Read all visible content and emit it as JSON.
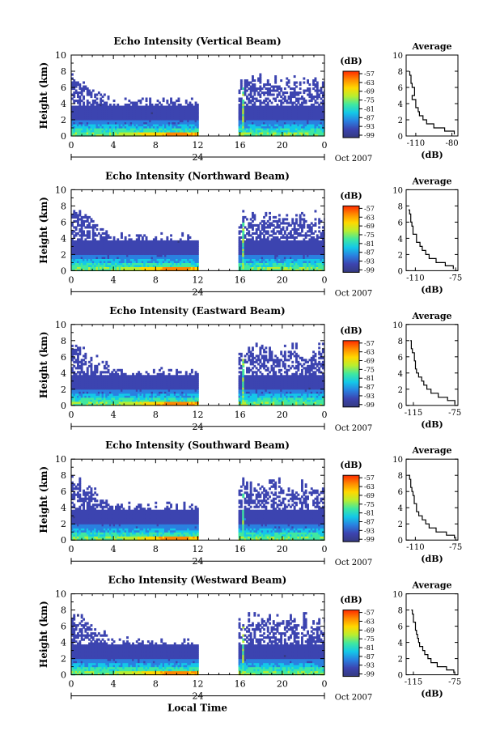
{
  "chart_data": [
    {
      "type": "heatmap",
      "title": "Echo Intensity (Vertical Beam)",
      "ylabel": "Height (km)",
      "y_ticks": [
        "0",
        "2",
        "4",
        "6",
        "8",
        "10"
      ],
      "x_ticks": [
        "0",
        "4",
        "8",
        "12",
        "16",
        "20",
        "0"
      ],
      "ylim": [
        0,
        10
      ],
      "xlim": [
        0,
        24
      ],
      "date_mark": "24",
      "month_year": "Oct 2007",
      "data_gap_hours": [
        12.2,
        15.8
      ],
      "colorbar": {
        "unit": "(dB)",
        "labels": [
          "-57",
          "-63",
          "-69",
          "-75",
          "-81",
          "-87",
          "-93",
          "-99"
        ]
      },
      "average_profile": {
        "title": "Average",
        "xlabel": "(dB)",
        "x_ticks": [
          "-110",
          "-80"
        ],
        "xlim": [
          -118,
          -75
        ],
        "y_ticks": [
          "0",
          "2",
          "4",
          "6",
          "8",
          "10"
        ],
        "ylim": [
          0,
          10
        ],
        "height_km": [
          0.2,
          0.6,
          1.0,
          1.5,
          2.0,
          2.5,
          3.0,
          3.5,
          4.0,
          4.5,
          5.0,
          5.5,
          6.0,
          6.5,
          7.0,
          7.5,
          8.0
        ],
        "echo_db": [
          -78,
          -86,
          -95,
          -101,
          -104,
          -107,
          -108,
          -110,
          -110,
          -113,
          -111,
          -111,
          -113,
          -114,
          -114,
          -115,
          -115
        ]
      }
    },
    {
      "type": "heatmap",
      "title": "Echo Intensity (Northward Beam)",
      "ylabel": "Height (km)",
      "y_ticks": [
        "0",
        "2",
        "4",
        "6",
        "8",
        "10"
      ],
      "x_ticks": [
        "0",
        "4",
        "8",
        "12",
        "16",
        "20",
        "0"
      ],
      "ylim": [
        0,
        10
      ],
      "xlim": [
        0,
        24
      ],
      "date_mark": "24",
      "month_year": "Oct 2007",
      "data_gap_hours": [
        12.2,
        15.8
      ],
      "colorbar": {
        "unit": "(dB)",
        "labels": [
          "-57",
          "-63",
          "-69",
          "-75",
          "-81",
          "-87",
          "-93",
          "-99"
        ]
      },
      "average_profile": {
        "title": "Average",
        "xlabel": "(dB)",
        "x_ticks": [
          "-110",
          "-75"
        ],
        "xlim": [
          -118,
          -73
        ],
        "y_ticks": [
          "0",
          "2",
          "4",
          "6",
          "8",
          "10"
        ],
        "ylim": [
          0,
          10
        ],
        "height_km": [
          0.2,
          0.6,
          1.0,
          1.5,
          2.0,
          2.5,
          3.0,
          3.5,
          4.0,
          4.5,
          5.0,
          5.5,
          6.0,
          6.5,
          7.0,
          7.5
        ],
        "echo_db": [
          -77,
          -84,
          -92,
          -98,
          -101,
          -104,
          -106,
          -109,
          -109,
          -112,
          -112,
          -113,
          -114,
          -114,
          -115,
          -116
        ]
      }
    },
    {
      "type": "heatmap",
      "title": "Echo Intensity (Eastward Beam)",
      "ylabel": "Height (km)",
      "y_ticks": [
        "0",
        "2",
        "4",
        "6",
        "8",
        "10"
      ],
      "x_ticks": [
        "0",
        "4",
        "8",
        "12",
        "16",
        "20",
        "0"
      ],
      "ylim": [
        0,
        10
      ],
      "xlim": [
        0,
        24
      ],
      "date_mark": "24",
      "month_year": "Oct 2007",
      "data_gap_hours": [
        12.2,
        15.8
      ],
      "colorbar": {
        "unit": "(dB)",
        "labels": [
          "-57",
          "-63",
          "-69",
          "-75",
          "-81",
          "-87",
          "-93",
          "-99"
        ]
      },
      "average_profile": {
        "title": "Average",
        "xlabel": "(dB)",
        "x_ticks": [
          "-115",
          "-75"
        ],
        "xlim": [
          -122,
          -72
        ],
        "y_ticks": [
          "0",
          "2",
          "4",
          "6",
          "8",
          "10"
        ],
        "ylim": [
          0,
          10
        ],
        "height_km": [
          0.2,
          0.6,
          1.0,
          1.5,
          2.0,
          2.5,
          3.0,
          3.5,
          4.0,
          4.5,
          5.0,
          5.5,
          6.0,
          6.5,
          7.0,
          7.5,
          8.0
        ],
        "echo_db": [
          -75,
          -82,
          -91,
          -98,
          -102,
          -105,
          -107,
          -110,
          -112,
          -113,
          -113,
          -114,
          -114,
          -116,
          -117,
          -117,
          -118
        ]
      }
    },
    {
      "type": "heatmap",
      "title": "Echo Intensity (Southward Beam)",
      "ylabel": "Height (km)",
      "y_ticks": [
        "0",
        "2",
        "4",
        "6",
        "8",
        "10"
      ],
      "x_ticks": [
        "0",
        "4",
        "8",
        "12",
        "16",
        "20",
        "0"
      ],
      "ylim": [
        0,
        10
      ],
      "xlim": [
        0,
        24
      ],
      "date_mark": "24",
      "month_year": "Oct 2007",
      "data_gap_hours": [
        12.2,
        15.8
      ],
      "colorbar": {
        "unit": "(dB)",
        "labels": [
          "-57",
          "-63",
          "-69",
          "-75",
          "-81",
          "-87",
          "-93",
          "-99"
        ]
      },
      "average_profile": {
        "title": "Average",
        "xlabel": "(dB)",
        "x_ticks": [
          "-110",
          "-75"
        ],
        "xlim": [
          -118,
          -73
        ],
        "y_ticks": [
          "0",
          "2",
          "4",
          "6",
          "8",
          "10"
        ],
        "ylim": [
          0,
          10
        ],
        "height_km": [
          0.2,
          0.6,
          1.0,
          1.5,
          2.0,
          2.5,
          3.0,
          3.5,
          4.0,
          4.5,
          5.0,
          5.5,
          6.0,
          6.5,
          7.0,
          7.5,
          8.0
        ],
        "echo_db": [
          -76,
          -83,
          -92,
          -98,
          -101,
          -104,
          -107,
          -109,
          -109,
          -111,
          -111,
          -112,
          -113,
          -114,
          -114,
          -115,
          -116
        ]
      }
    },
    {
      "type": "heatmap",
      "title": "Echo Intensity (Westward Beam)",
      "ylabel": "Height (km)",
      "y_ticks": [
        "0",
        "2",
        "4",
        "6",
        "8",
        "10"
      ],
      "x_ticks": [
        "0",
        "4",
        "8",
        "12",
        "16",
        "20",
        "0"
      ],
      "ylim": [
        0,
        10
      ],
      "xlim": [
        0,
        24
      ],
      "date_mark": "24",
      "month_year": "Oct 2007",
      "xlabel": "Local Time",
      "data_gap_hours": [
        12.2,
        15.8
      ],
      "colorbar": {
        "unit": "(dB)",
        "labels": [
          "-57",
          "-63",
          "-69",
          "-75",
          "-81",
          "-87",
          "-93",
          "-99"
        ]
      },
      "average_profile": {
        "title": "Average",
        "xlabel": "(dB)",
        "x_ticks": [
          "-115",
          "-75"
        ],
        "xlim": [
          -122,
          -72
        ],
        "y_ticks": [
          "0",
          "2",
          "4",
          "6",
          "8",
          "10"
        ],
        "ylim": [
          0,
          10
        ],
        "height_km": [
          0.2,
          0.6,
          1.0,
          1.5,
          2.0,
          2.5,
          3.0,
          3.5,
          4.0,
          4.5,
          5.0,
          5.5,
          6.0,
          6.5,
          7.0,
          7.5,
          8.0
        ],
        "echo_db": [
          -76,
          -83,
          -92,
          -98,
          -101,
          -104,
          -106,
          -109,
          -110,
          -111,
          -112,
          -113,
          -113,
          -115,
          -115,
          -116,
          -117
        ]
      }
    }
  ],
  "colors": {
    "colorbar_stops": [
      "#ff2a00",
      "#ff8a00",
      "#ffd800",
      "#b8ee30",
      "#40e8a0",
      "#14c8e8",
      "#2a80e0",
      "#3c44b0",
      "#353a80"
    ],
    "background_echo": "#363c82",
    "strong_echo": "#ff4a10"
  }
}
